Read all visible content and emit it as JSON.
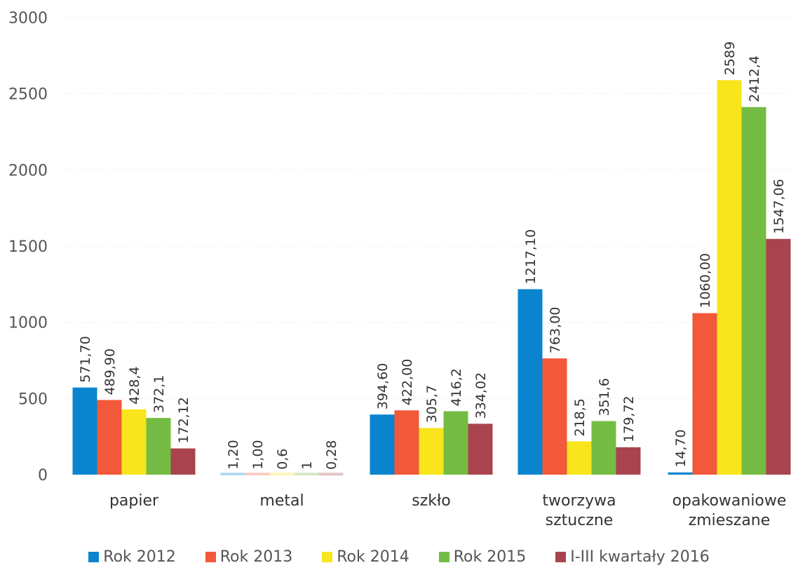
{
  "chart_data": {
    "type": "bar",
    "title": "",
    "xlabel": "",
    "ylabel": "",
    "ylim": [
      0,
      3000
    ],
    "yticks": [
      0,
      500,
      1000,
      1500,
      2000,
      2500,
      3000
    ],
    "grid": true,
    "legend_position": "bottom",
    "categories": [
      [
        "papier"
      ],
      [
        "metal"
      ],
      [
        "szkło"
      ],
      [
        "tworzywa",
        "sztuczne"
      ],
      [
        "opakowaniowe",
        "zmieszane"
      ]
    ],
    "series": [
      {
        "name": "Rok 2012",
        "color": "#0a84cf",
        "values": [
          571.7,
          1.2,
          394.6,
          1217.1,
          14.7
        ],
        "labels": [
          "571,70",
          "1,20",
          "394,60",
          "1217,10",
          "14,70"
        ]
      },
      {
        "name": "Rok 2013",
        "color": "#f2583a",
        "values": [
          489.9,
          1.0,
          422.0,
          763.0,
          1060.0
        ],
        "labels": [
          "489,90",
          "1,00",
          "422,00",
          "763,00",
          "1060,00"
        ]
      },
      {
        "name": "Rok 2014",
        "color": "#f9e51c",
        "values": [
          428.4,
          0.6,
          305.7,
          218.5,
          2589
        ],
        "labels": [
          "428,4",
          "0,6",
          "305,7",
          "218,5",
          "2589"
        ]
      },
      {
        "name": "Rok 2015",
        "color": "#74bc43",
        "values": [
          372.1,
          1,
          416.2,
          351.6,
          2412.4
        ],
        "labels": [
          "372,1",
          "1",
          "416,2",
          "351,6",
          "2412,4"
        ]
      },
      {
        "name": "I-III kwartały 2016",
        "color": "#a9444e",
        "values": [
          172.12,
          0.28,
          334.02,
          179.72,
          1547.06
        ],
        "labels": [
          "172,12",
          "0,28",
          "334,02",
          "179,72",
          "1547,06"
        ]
      }
    ]
  }
}
